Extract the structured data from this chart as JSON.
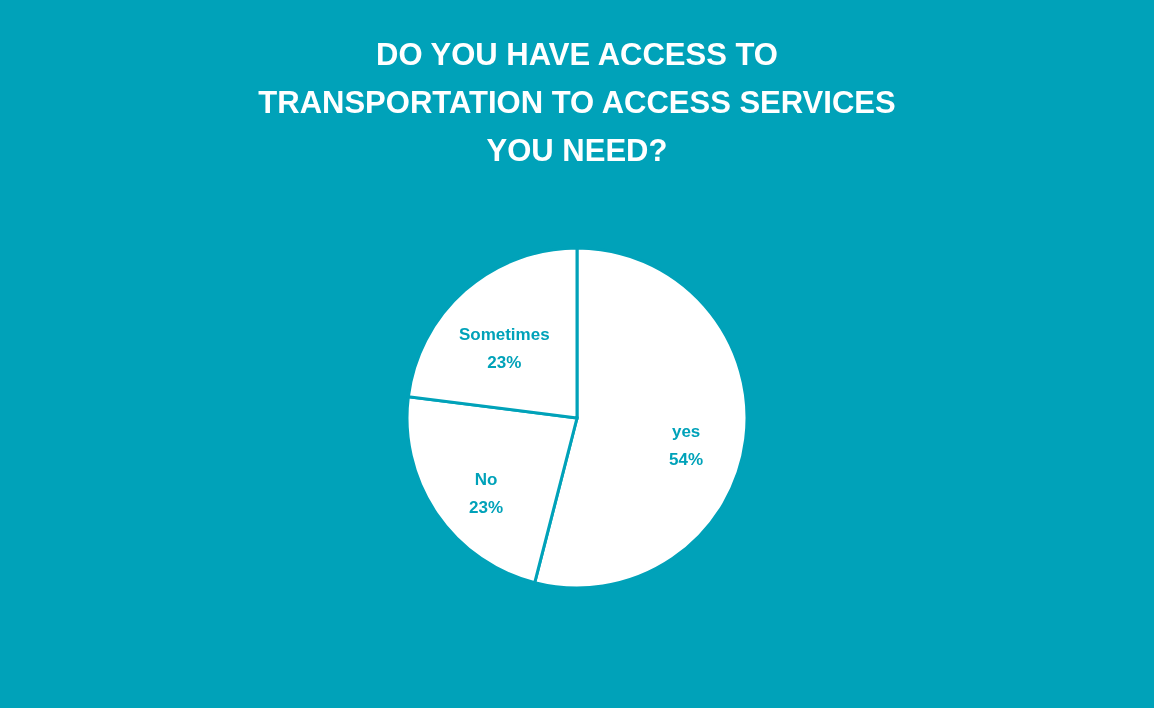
{
  "chart_data": {
    "type": "pie",
    "title": "DO YOU HAVE ACCESS TO\nTRANSPORTATION TO ACCESS SERVICES\nYOU NEED?",
    "categories": [
      "yes",
      "No",
      "Sometimes"
    ],
    "values": [
      54,
      23,
      23
    ],
    "value_labels": [
      "54%",
      "23%",
      "23%"
    ],
    "colors": [
      "#ffffff",
      "#ffffff",
      "#ffffff"
    ]
  }
}
